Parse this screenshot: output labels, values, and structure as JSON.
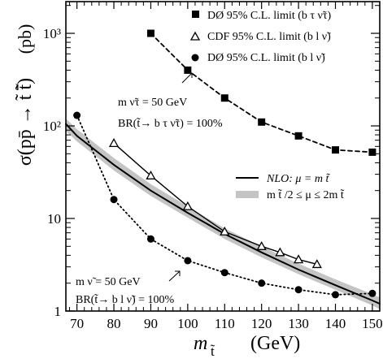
{
  "chart_data": {
    "type": "line",
    "xlabel_main": "m",
    "xlabel_sub": "t̃",
    "xlabel_unit": "(GeV)",
    "ylabel_main": "σ(pp̄ → t̃ t̃̄)",
    "ylabel_unit": "(pb)",
    "xlim": [
      67,
      152
    ],
    "ylim": [
      1,
      2200
    ],
    "y_scale": "log",
    "x_ticks": [
      70,
      80,
      90,
      100,
      110,
      120,
      130,
      140,
      150
    ],
    "x_tick_labels": [
      "70",
      "80",
      "90",
      "100",
      "110",
      "120",
      "130",
      "140",
      "150"
    ],
    "y_ticks": [
      1,
      10,
      100,
      1000
    ],
    "y_tick_labels": [
      "1",
      "10",
      "10²",
      "10³"
    ],
    "legend": [
      {
        "symbol": "square",
        "label": "DØ  95% C.L. limit (b τ ν̃τ)"
      },
      {
        "symbol": "triangle",
        "label": "CDF 95% C.L. limit (b l ν̃)"
      },
      {
        "symbol": "circle",
        "label": "DØ  95% C.L. limit (b l ν̃)"
      }
    ],
    "legend2": [
      {
        "symbol": "line",
        "label": "NLO: μ = m t̃"
      },
      {
        "symbol": "band",
        "label": "m t̃ /2 ≤ μ ≤ 2m t̃"
      }
    ],
    "series": [
      {
        "name": "DØ 95% C.L. limit (b τ ν̃τ)",
        "marker": "square",
        "style": "dashed",
        "x": [
          90,
          100,
          110,
          120,
          130,
          140,
          150
        ],
        "y": [
          1000,
          400,
          200,
          110,
          78,
          55,
          52
        ]
      },
      {
        "name": "CDF 95% C.L. limit (b l ν̃)",
        "marker": "triangle",
        "style": "solid",
        "x": [
          80,
          90,
          100,
          110,
          120,
          125,
          130,
          135
        ],
        "y": [
          65,
          29,
          13.5,
          7.2,
          5.0,
          4.3,
          3.6,
          3.2
        ]
      },
      {
        "name": "DØ 95% C.L. limit (b l ν̃)",
        "marker": "circle",
        "style": "dotted",
        "x": [
          70,
          80,
          90,
          100,
          110,
          120,
          130,
          140,
          150
        ],
        "y": [
          130,
          16,
          6.0,
          3.5,
          2.6,
          2.0,
          1.7,
          1.5,
          1.55
        ]
      },
      {
        "name": "NLO: μ = m t̃",
        "marker": "none",
        "style": "solid",
        "x": [
          67,
          70,
          80,
          90,
          100,
          110,
          120,
          130,
          140,
          150,
          152
        ],
        "y": [
          105,
          78,
          38,
          20,
          11.5,
          6.8,
          4.3,
          2.8,
          1.9,
          1.3,
          1.2
        ]
      }
    ],
    "band": {
      "name": "m t̃ /2 ≤ μ ≤ 2m t̃",
      "x": [
        67,
        70,
        80,
        90,
        100,
        110,
        120,
        130,
        140,
        150,
        152
      ],
      "y_low": [
        88,
        68,
        33,
        17.5,
        10.2,
        6.0,
        3.8,
        2.5,
        1.7,
        1.15,
        1.05
      ],
      "y_high": [
        120,
        92,
        45,
        23.5,
        13.5,
        7.8,
        5.0,
        3.25,
        2.2,
        1.52,
        1.4
      ]
    },
    "annotations": [
      {
        "line1": "m ν̃τ = 50 GeV",
        "line2": "BR(t̃→ b τ ν̃τ) = 100%"
      },
      {
        "line1": "m ν̃ = 50 GeV",
        "line2": "BR(t̃→ b l ν̃) = 100%"
      }
    ]
  }
}
